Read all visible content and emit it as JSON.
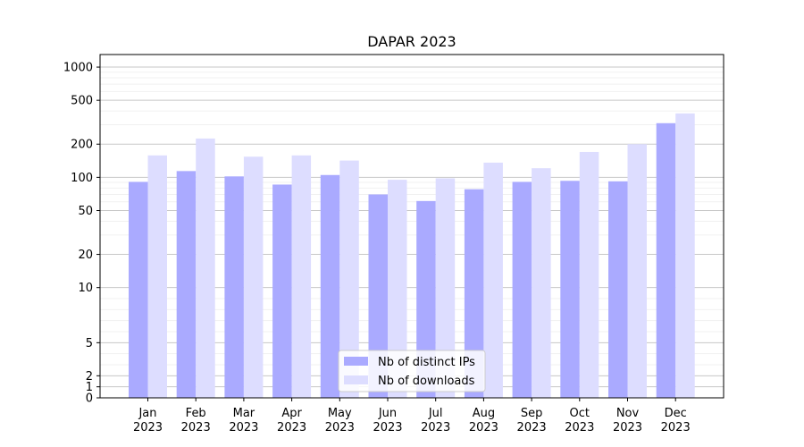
{
  "chart_data": {
    "type": "bar",
    "title": "DAPAR 2023",
    "xlabel": "",
    "ylabel": "",
    "yscale": "symlog",
    "ylim": [
      0,
      1300
    ],
    "y_ticks": [
      {
        "value": 0,
        "label": "0"
      },
      {
        "value": 1,
        "label": "1"
      },
      {
        "value": 2,
        "label": "2"
      },
      {
        "value": 5,
        "label": "5"
      },
      {
        "value": 10,
        "label": "10"
      },
      {
        "value": 20,
        "label": "20"
      },
      {
        "value": 50,
        "label": "50"
      },
      {
        "value": 100,
        "label": "100"
      },
      {
        "value": 200,
        "label": "200"
      },
      {
        "value": 500,
        "label": "500"
      },
      {
        "value": 1000,
        "label": "1000"
      }
    ],
    "grid": true,
    "legend_position": "bottom-center",
    "categories": [
      {
        "month": "Jan",
        "year": "2023"
      },
      {
        "month": "Feb",
        "year": "2023"
      },
      {
        "month": "Mar",
        "year": "2023"
      },
      {
        "month": "Apr",
        "year": "2023"
      },
      {
        "month": "May",
        "year": "2023"
      },
      {
        "month": "Jun",
        "year": "2023"
      },
      {
        "month": "Jul",
        "year": "2023"
      },
      {
        "month": "Aug",
        "year": "2023"
      },
      {
        "month": "Sep",
        "year": "2023"
      },
      {
        "month": "Oct",
        "year": "2023"
      },
      {
        "month": "Nov",
        "year": "2023"
      },
      {
        "month": "Dec",
        "year": "2023"
      }
    ],
    "series": [
      {
        "name": "Nb of distinct IPs",
        "color": "#aaaaff",
        "values": [
          91,
          114,
          102,
          86,
          105,
          70,
          61,
          78,
          91,
          93,
          92,
          310
        ]
      },
      {
        "name": "Nb of downloads",
        "color": "#ddddff",
        "values": [
          158,
          225,
          154,
          158,
          142,
          95,
          98,
          136,
          121,
          170,
          200,
          380
        ]
      }
    ]
  }
}
